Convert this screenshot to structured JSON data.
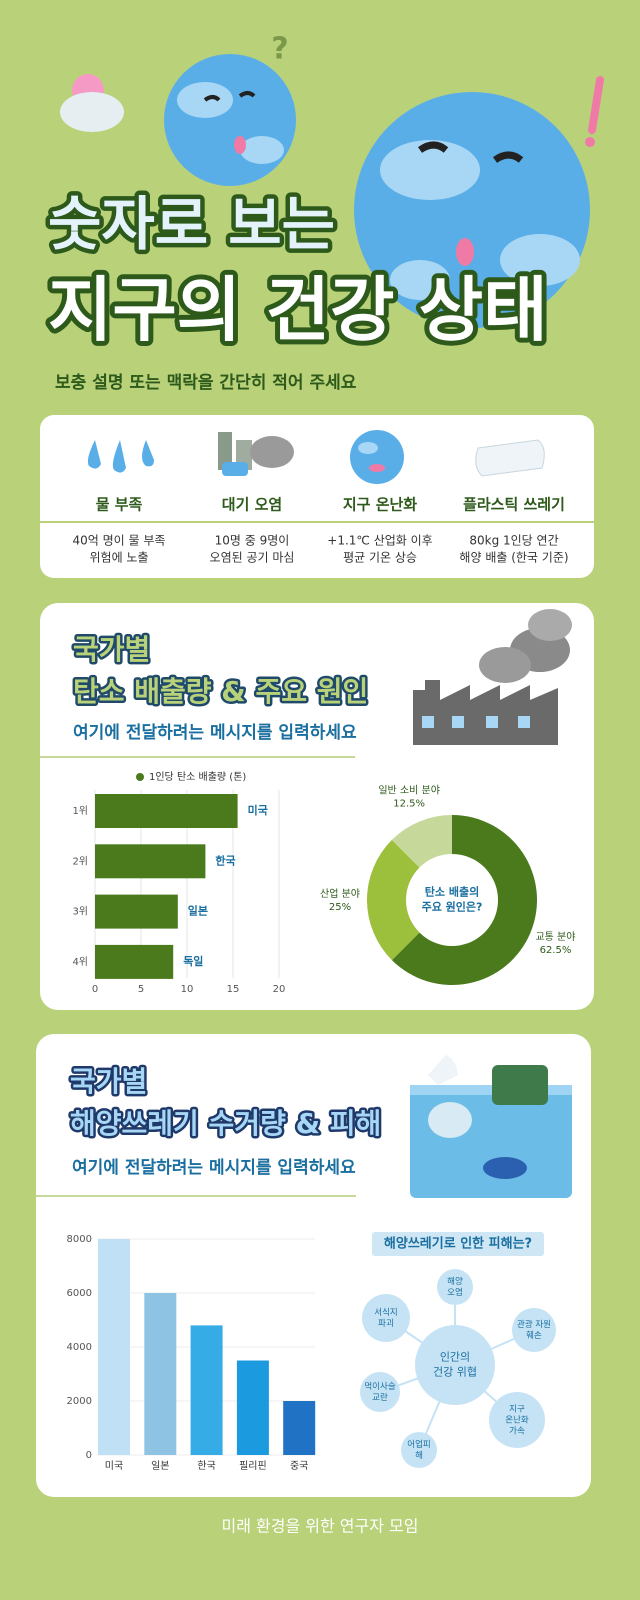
{
  "header": {
    "title_line1": "숫자로 보는",
    "title_line2": "지구의 건강 상태",
    "subtitle": "보충 설명 또는 맥락을 간단히 적어 주세요"
  },
  "cards": [
    {
      "label": "물 부족",
      "desc": [
        "40억 명이 물 부족",
        "위험에 노출"
      ]
    },
    {
      "label": "대기 오염",
      "desc": [
        "10명 중 9명이",
        "오염된 공기 마심"
      ]
    },
    {
      "label": "지구 온난화",
      "desc": [
        "+1.1℃ 산업화 이후",
        "평균 기온 상승"
      ]
    },
    {
      "label": "플라스틱 쓰레기",
      "desc": [
        "80kg 1인당 연간",
        "해양 배출 (한국 기준)"
      ]
    }
  ],
  "section1": {
    "title_line1": "국가별",
    "title_line2": "탄소 배출량 & 주요 원인",
    "message": "여기에 전달하려는 메시지를 입력하세요"
  },
  "section2": {
    "title_line1": "국가별",
    "title_line2": "해양쓰레기 수거량 & 피해",
    "message": "여기에 전달하려는 메시지를 입력하세요"
  },
  "chart_data": [
    {
      "type": "hbar",
      "categories": [
        "1위",
        "2위",
        "3위",
        "4위"
      ],
      "series": [
        {
          "name": "1인당 탄소 배출량 (톤)",
          "color": "#4a7a1c",
          "values": [
            15.5,
            12,
            9,
            8.5
          ]
        }
      ],
      "bar_labels": [
        "미국",
        "한국",
        "일본",
        "독일"
      ],
      "xlim": [
        0,
        20
      ],
      "xticks": [
        0,
        5,
        10,
        15,
        20
      ],
      "grid": true
    },
    {
      "type": "donut",
      "categories": [
        "교통 분야",
        "산업 분야",
        "일반 소비 분야"
      ],
      "values": [
        62.5,
        25,
        12.5
      ],
      "value_labels": [
        "62.5%",
        "25%",
        "12.5%"
      ],
      "colors": [
        "#4a7a1c",
        "#9cbf3c",
        "#c6d99a"
      ],
      "center_text": [
        "탄소 배출의",
        "주요 원인은?"
      ]
    },
    {
      "type": "bar",
      "categories": [
        "미국",
        "일본",
        "한국",
        "필리핀",
        "중국"
      ],
      "values": [
        8000,
        6000,
        4800,
        3500,
        2000
      ],
      "colors": [
        "#bfe0f5",
        "#8ec3e3",
        "#35ace6",
        "#1c9ae0",
        "#1f72c4"
      ],
      "ylim": [
        0,
        8000
      ],
      "yticks": [
        0,
        2000,
        4000,
        6000,
        8000
      ],
      "grid": true
    }
  ],
  "diagram": {
    "title": "해양쓰레기로 인한 피해는?",
    "center": [
      "인간의",
      "건강 위협"
    ],
    "nodes": [
      {
        "label": [
          "해양",
          "오염"
        ]
      },
      {
        "label": [
          "관광 자원",
          "훼손"
        ]
      },
      {
        "label": [
          "지구",
          "온난화",
          "가속"
        ]
      },
      {
        "label": [
          "어업피",
          "해"
        ]
      },
      {
        "label": [
          "먹이사슬",
          "교란"
        ]
      },
      {
        "label": [
          "서식지",
          "파괴"
        ]
      }
    ]
  },
  "footer": "미래 환경을 위한 연구자 모임"
}
